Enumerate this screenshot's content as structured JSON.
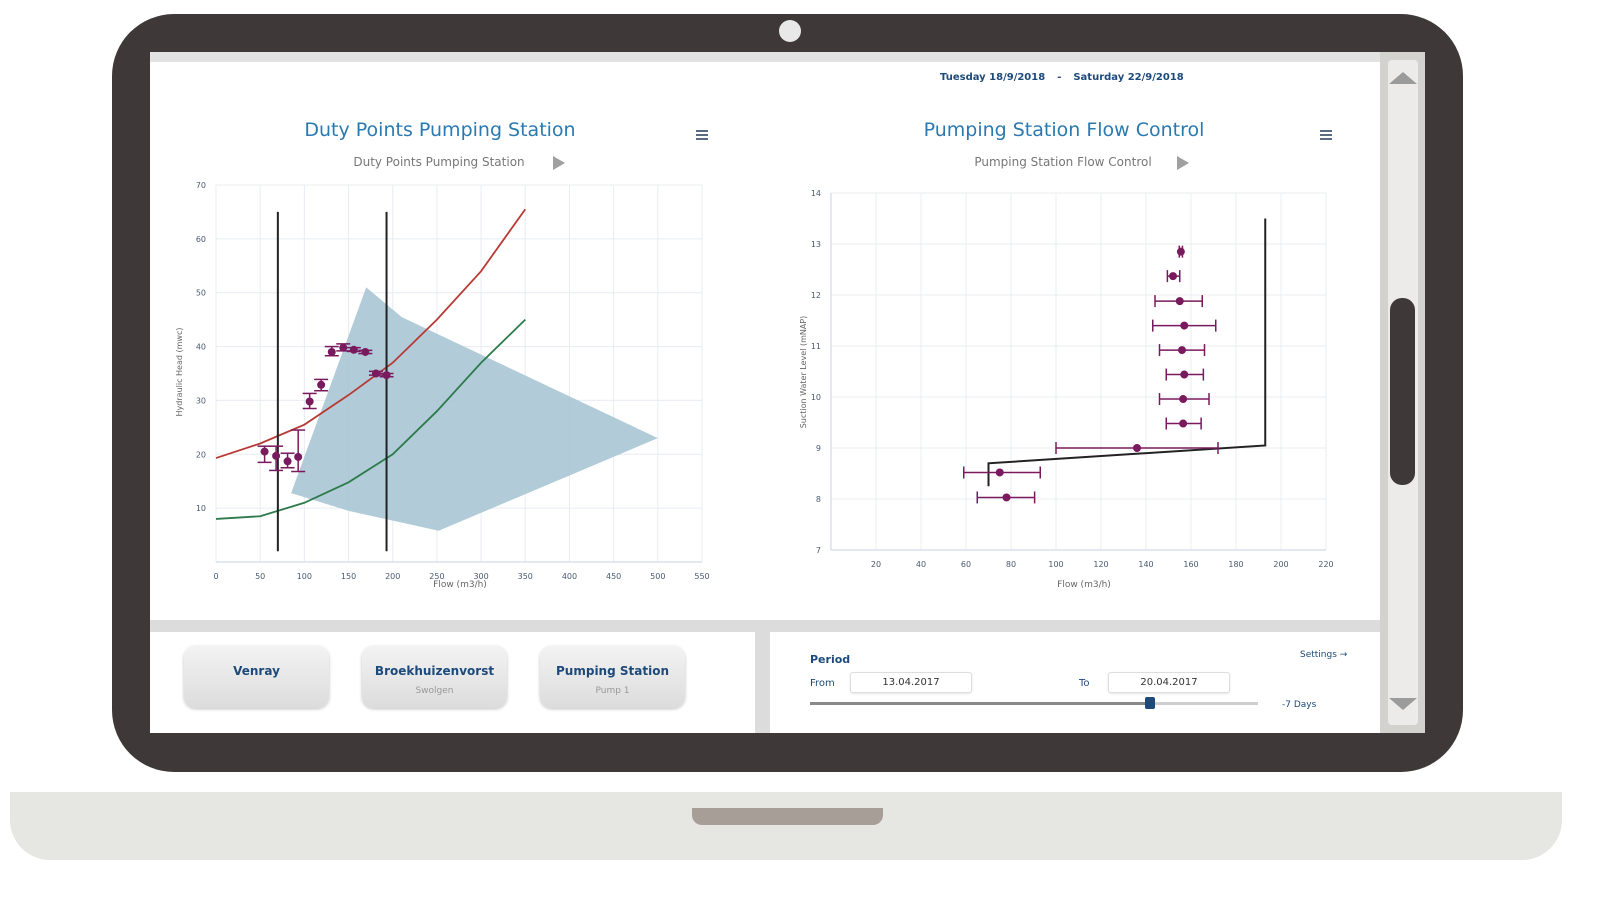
{
  "header": {
    "date_from": "Tuesday 18/9/2018",
    "date_separator": "-",
    "date_to": "Saturday 22/9/2018"
  },
  "icons": {
    "menu": "hamburger-menu-icon",
    "play": "play-icon",
    "scroll_up": "triangle-up-icon",
    "scroll_down": "triangle-down-icon"
  },
  "colors": {
    "frame": "#3f3838",
    "title": "#2a7ab0",
    "points": "#7a1a5e",
    "red_curve": "#b83a34",
    "green_curve": "#2d7a4a",
    "area": "#a9c7d4",
    "line": "#222222"
  },
  "locations": [
    {
      "name": "Venray",
      "sub": ""
    },
    {
      "name": "Broekhuizenvorst",
      "sub": "Swolgen"
    },
    {
      "name": "Pumping Station",
      "sub": "Pump 1"
    }
  ],
  "period": {
    "title": "Period",
    "settings": "Settings →",
    "from_label": "From",
    "from_value": "13.04.2017",
    "to_label": "To",
    "to_value": "20.04.2017",
    "range_label": "-7 Days",
    "slider_position": 0.76
  },
  "chart_data": [
    {
      "type": "scatter",
      "title": "Duty Points Pumping Station",
      "subtitle": "Duty Points Pumping Station",
      "xlabel": "Flow (m3/h)",
      "ylabel": "Hydraulic Head (mwc)",
      "xlim": [
        0,
        550
      ],
      "ylim": [
        0,
        70
      ],
      "xticks": [
        0,
        50,
        100,
        150,
        200,
        250,
        300,
        350,
        400,
        450,
        500,
        550
      ],
      "yticks": [
        10,
        20,
        30,
        40,
        50,
        60,
        70
      ],
      "grid": true,
      "points": [
        {
          "x": 55,
          "y": 20.5,
          "ylo": 18.5,
          "yhi": 21.5
        },
        {
          "x": 68,
          "y": 19.7,
          "ylo": 17.0,
          "yhi": 21.5
        },
        {
          "x": 81,
          "y": 18.7,
          "ylo": 17.5,
          "yhi": 20.2
        },
        {
          "x": 93,
          "y": 19.5,
          "ylo": 16.8,
          "yhi": 24.5
        },
        {
          "x": 106,
          "y": 29.8,
          "ylo": 28.5,
          "yhi": 31.3
        },
        {
          "x": 119,
          "y": 32.9,
          "ylo": 31.8,
          "yhi": 33.9
        },
        {
          "x": 131,
          "y": 39.0,
          "ylo": 38.3,
          "yhi": 40.0
        },
        {
          "x": 144,
          "y": 39.8,
          "ylo": 39.2,
          "yhi": 40.5
        },
        {
          "x": 156,
          "y": 39.4,
          "ylo": 39.1,
          "yhi": 39.8
        },
        {
          "x": 169,
          "y": 39.0,
          "ylo": 38.7,
          "yhi": 39.3
        },
        {
          "x": 181,
          "y": 35.0,
          "ylo": 34.7,
          "yhi": 35.4
        },
        {
          "x": 193,
          "y": 34.7,
          "ylo": 34.4,
          "yhi": 35.0
        }
      ],
      "curves": [
        {
          "color": "#b83a34",
          "x": [
            0,
            50,
            100,
            150,
            200,
            250,
            300,
            350
          ],
          "y": [
            19.3,
            22,
            25.5,
            31,
            37,
            45,
            54,
            65.5
          ]
        },
        {
          "color": "#2d7a4a",
          "x": [
            0,
            50,
            100,
            150,
            200,
            250,
            300,
            350
          ],
          "y": [
            8,
            8.5,
            11,
            14.8,
            20,
            28,
            37,
            45
          ]
        }
      ],
      "area": {
        "x": [
          85,
          170,
          210,
          500,
          252,
          150
        ],
        "y": [
          12.8,
          51,
          45.5,
          23,
          5.8,
          9.5
        ]
      },
      "vlines": [
        {
          "x": 70,
          "y": [
            2,
            65
          ]
        },
        {
          "x": 193,
          "y": [
            2,
            65
          ]
        }
      ]
    },
    {
      "type": "scatter",
      "title": "Pumping Station Flow Control",
      "subtitle": "Pumping Station Flow Control",
      "xlabel": "Flow (m3/h)",
      "ylabel": "Suction Water Level (mNAP)",
      "xlim": [
        0,
        220
      ],
      "ylim": [
        7,
        14
      ],
      "xticks": [
        20,
        40,
        60,
        80,
        100,
        120,
        140,
        160,
        180,
        200,
        220
      ],
      "yticks": [
        7,
        8,
        9,
        10,
        11,
        12,
        13,
        14
      ],
      "grid": true,
      "points": [
        {
          "x": 155.5,
          "y": 12.85,
          "xlo": 154.8,
          "xhi": 156.2
        },
        {
          "x": 152,
          "y": 12.37,
          "xlo": 149.5,
          "xhi": 155
        },
        {
          "x": 155,
          "y": 11.88,
          "xlo": 144,
          "xhi": 165
        },
        {
          "x": 157,
          "y": 11.4,
          "xlo": 143,
          "xhi": 171
        },
        {
          "x": 156,
          "y": 10.92,
          "xlo": 146,
          "xhi": 166
        },
        {
          "x": 157,
          "y": 10.44,
          "xlo": 149,
          "xhi": 165.5
        },
        {
          "x": 156.5,
          "y": 9.96,
          "xlo": 146,
          "xhi": 168
        },
        {
          "x": 156.5,
          "y": 9.48,
          "xlo": 149,
          "xhi": 164.5
        },
        {
          "x": 136,
          "y": 9.0,
          "xlo": 100,
          "xhi": 172
        },
        {
          "x": 75,
          "y": 8.52,
          "xlo": 59,
          "xhi": 93
        },
        {
          "x": 78,
          "y": 8.03,
          "xlo": 65,
          "xhi": 90.5
        }
      ],
      "control_line": {
        "x": [
          70,
          70,
          193,
          193
        ],
        "y": [
          8.25,
          8.7,
          9.05,
          13.5
        ]
      }
    }
  ]
}
